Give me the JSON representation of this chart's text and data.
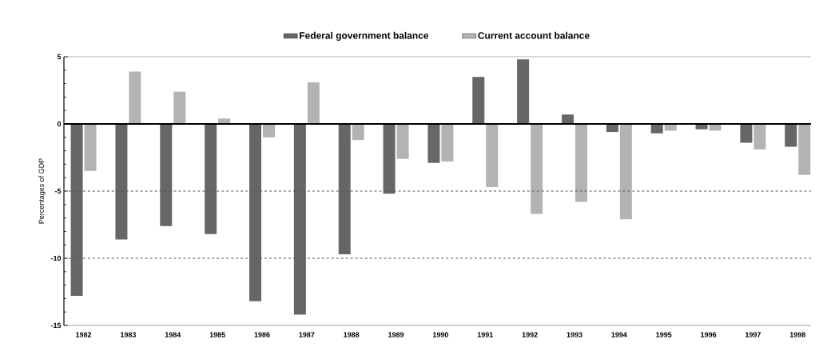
{
  "chart_data": {
    "type": "bar",
    "ylabel": "Percentages of GDP",
    "categories": [
      "1982",
      "1983",
      "1984",
      "1985",
      "1986",
      "1987",
      "1988",
      "1989",
      "1990",
      "1991",
      "1992",
      "1993",
      "1994",
      "1995",
      "1996",
      "1997",
      "1998"
    ],
    "series": [
      {
        "name": "Federal government balance",
        "color": "#666666",
        "values": [
          -12.8,
          -8.6,
          -7.6,
          -8.2,
          -13.2,
          -14.2,
          -9.7,
          -5.2,
          -2.9,
          3.5,
          4.8,
          0.7,
          -0.6,
          -0.7,
          -0.4,
          -1.4,
          -1.7
        ]
      },
      {
        "name": "Current account balance",
        "color": "#b3b3b3",
        "values": [
          -3.5,
          3.9,
          2.4,
          0.4,
          -1.0,
          3.1,
          -1.2,
          -2.6,
          -2.8,
          -4.7,
          -6.7,
          -5.8,
          -7.1,
          -0.5,
          -0.5,
          -1.9,
          -3.8
        ]
      }
    ],
    "ylim": [
      -15,
      5
    ],
    "yticks": [
      -15,
      -10,
      -5,
      0,
      5
    ],
    "legend": "top",
    "ref_lines": [
      {
        "axis": "y",
        "value": 0,
        "color": "#000000",
        "line_style": "solid"
      },
      {
        "axis": "y",
        "value": -5,
        "color": "#555555",
        "line_style": "dashed"
      },
      {
        "axis": "y",
        "value": -10,
        "color": "#555555",
        "line_style": "dashed"
      }
    ]
  }
}
